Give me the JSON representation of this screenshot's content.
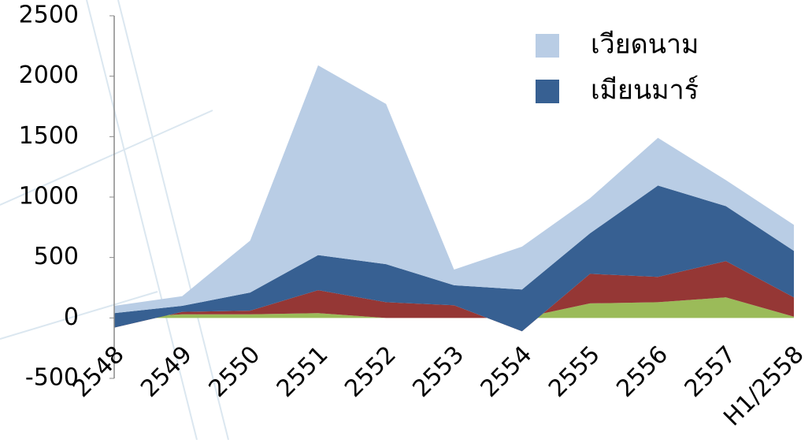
{
  "chart_data": {
    "type": "area",
    "stacked": true,
    "categories": [
      "2548",
      "2549",
      "2550",
      "2551",
      "2552",
      "2553",
      "2554",
      "2555",
      "2556",
      "2557",
      "H1/2558"
    ],
    "series": [
      {
        "color": "#9bbb59",
        "values": [
          0,
          30,
          30,
          40,
          0,
          0,
          0,
          120,
          130,
          170,
          10
        ]
      },
      {
        "color": "#953735",
        "values": [
          -80,
          20,
          30,
          190,
          130,
          105,
          -110,
          245,
          210,
          300,
          160
        ]
      },
      {
        "name": "เมียนมาร์",
        "color": "#376092",
        "values": [
          120,
          50,
          150,
          290,
          315,
          165,
          345,
          335,
          755,
          455,
          385
        ]
      },
      {
        "name": "เวียดนาม",
        "color": "#b9cde5",
        "values": [
          60,
          80,
          430,
          1570,
          1325,
          130,
          355,
          290,
          395,
          215,
          215
        ]
      }
    ],
    "ylim": [
      -500,
      2500
    ],
    "yticks": [
      -500,
      0,
      500,
      1000,
      1500,
      2000,
      2500
    ],
    "grid": false,
    "legend": "top-right"
  }
}
